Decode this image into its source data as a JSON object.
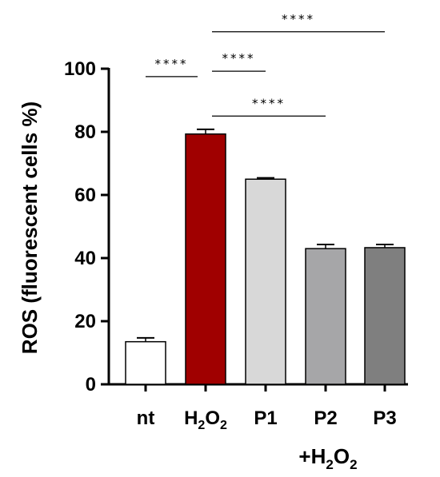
{
  "chart_data": {
    "type": "bar",
    "ylabel": "ROS (fluorescent cells %)",
    "ylim": [
      0,
      100
    ],
    "yticks": [
      0,
      20,
      40,
      60,
      80,
      100
    ],
    "categories": [
      {
        "label": "nt",
        "base": "nt",
        "sub": "",
        "tail": ""
      },
      {
        "label": "H2O2",
        "base": "H",
        "sub": "2",
        "mid": "O",
        "sub2": "2"
      },
      {
        "label": "P1",
        "base": "P1"
      },
      {
        "label": "P2",
        "base": "P2"
      },
      {
        "label": "P3",
        "base": "P3"
      }
    ],
    "values": [
      13.5,
      79.3,
      65.0,
      43.0,
      43.3
    ],
    "errors": [
      1.2,
      1.5,
      0.4,
      1.3,
      1.0
    ],
    "colors": [
      "#ffffff",
      "#a00000",
      "#d8d8d8",
      "#a6a6a8",
      "#7f7f7f"
    ],
    "group_label": {
      "base": "+H",
      "sub": "2",
      "mid": "O",
      "sub2": "2",
      "text": "+H2O2"
    },
    "significance": [
      {
        "from": 0,
        "to": 1,
        "label": "****",
        "y": 97.5
      },
      {
        "from": 1,
        "to": 2,
        "label": "****",
        "y": 99.2
      },
      {
        "from": 1,
        "to": 3,
        "label": "****",
        "y": 85.0
      },
      {
        "from": 1,
        "to": 4,
        "label": "****",
        "y": 111.7
      }
    ]
  }
}
